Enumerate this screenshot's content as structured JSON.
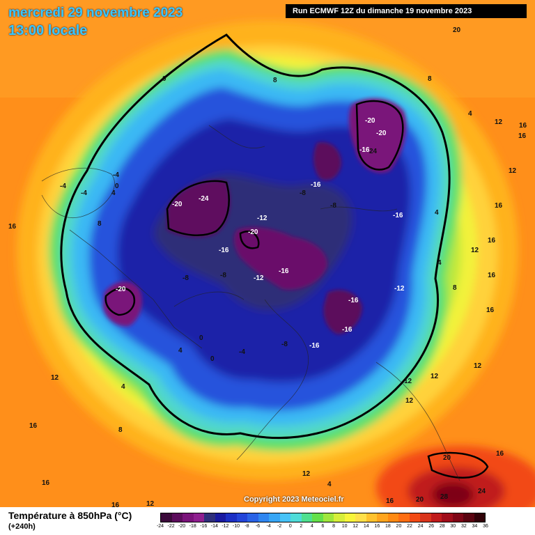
{
  "header": {
    "date": "mercredi 29 novembre 2023",
    "time": "13:00 locale",
    "run": "Run ECMWF 12Z du dimanche 19 novembre 2023"
  },
  "copyright": "Copyright 2023 Meteociel.fr",
  "footer": {
    "variable": "Température à 850hPa (°C)",
    "lead": "(+240h)"
  },
  "colorscale": {
    "ticks": [
      "-24",
      "-22",
      "-20",
      "-18",
      "-16",
      "-14",
      "-12",
      "-10",
      "-8",
      "-6",
      "-4",
      "-2",
      "0",
      "2",
      "4",
      "6",
      "8",
      "10",
      "12",
      "14",
      "16",
      "18",
      "20",
      "22",
      "24",
      "26",
      "28",
      "30",
      "32",
      "34",
      "36"
    ],
    "colors": [
      "#3b0a3a",
      "#5c0c5c",
      "#7a137a",
      "#8f1f8f",
      "#2f2f7a",
      "#1a1aa0",
      "#1c2fc4",
      "#2345d9",
      "#2a63e6",
      "#2f86f0",
      "#37a6f5",
      "#47c3f7",
      "#4fdcd8",
      "#4fe08f",
      "#64e04a",
      "#9fe63c",
      "#d6ee3a",
      "#f7f53a",
      "#ffe04a",
      "#ffc22e",
      "#ffa51e",
      "#ff8a12",
      "#ff6e12",
      "#f24a14",
      "#d9341b",
      "#c01b1b",
      "#a00d1a",
      "#7e0616",
      "#5a0410",
      "#300208"
    ]
  },
  "labels": [
    {
      "t": "20"
    },
    {
      "t": "0"
    },
    {
      "t": "8"
    },
    {
      "t": "8"
    },
    {
      "t": "4"
    },
    {
      "t": "12"
    },
    {
      "t": "16"
    },
    {
      "t": "16"
    },
    {
      "t": "12"
    },
    {
      "t": "16"
    },
    {
      "t": "-20"
    },
    {
      "t": "-20"
    },
    {
      "t": "-16"
    },
    {
      "t": "24"
    },
    {
      "t": "-16"
    },
    {
      "t": "-8"
    },
    {
      "t": "-8"
    },
    {
      "t": "-16"
    },
    {
      "t": "4"
    },
    {
      "t": "12"
    },
    {
      "t": "16"
    },
    {
      "t": "4"
    },
    {
      "t": "8"
    },
    {
      "t": "16"
    },
    {
      "t": "-12"
    },
    {
      "t": "-16"
    },
    {
      "t": "-16"
    },
    {
      "t": "-16"
    },
    {
      "t": "-8"
    },
    {
      "t": "-12"
    },
    {
      "t": "-16"
    },
    {
      "t": "-20"
    },
    {
      "t": "-24"
    },
    {
      "t": "-20"
    },
    {
      "t": "-12"
    },
    {
      "t": "-16"
    },
    {
      "t": "-8"
    },
    {
      "t": "-8"
    },
    {
      "t": "-20"
    },
    {
      "t": "-4"
    },
    {
      "t": "-4"
    },
    {
      "t": "-4"
    },
    {
      "t": "0"
    },
    {
      "t": "4"
    },
    {
      "t": "8"
    },
    {
      "t": "12"
    },
    {
      "t": "4"
    },
    {
      "t": "16"
    },
    {
      "t": "0"
    },
    {
      "t": "0"
    },
    {
      "t": "-4"
    },
    {
      "t": "4"
    },
    {
      "t": "8"
    },
    {
      "t": "12"
    },
    {
      "t": "4"
    },
    {
      "t": "16"
    },
    {
      "t": "16"
    },
    {
      "t": "12"
    },
    {
      "t": "12"
    },
    {
      "t": "12"
    },
    {
      "t": "16"
    },
    {
      "t": "20"
    },
    {
      "t": "28"
    },
    {
      "t": "24"
    },
    {
      "t": "20"
    },
    {
      "t": "16"
    },
    {
      "t": "12"
    },
    {
      "t": "16"
    },
    {
      "t": "16"
    },
    {
      "t": "12"
    }
  ]
}
